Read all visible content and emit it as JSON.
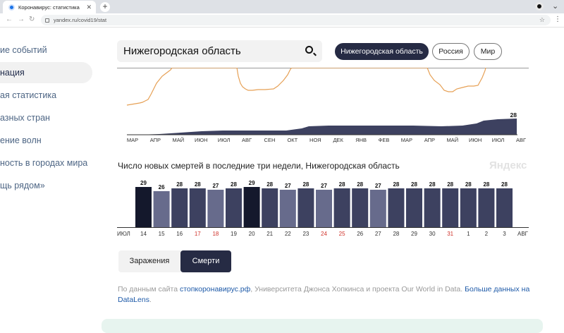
{
  "browser": {
    "tab_title": "Коронавирус: статистика",
    "url": "yandex.ru/covid19/stat"
  },
  "sidebar": {
    "items": [
      {
        "label": "ие событий",
        "active": false
      },
      {
        "label": "нация",
        "active": true
      },
      {
        "label": "ая статистика",
        "active": false
      },
      {
        "label": "азных стран",
        "active": false
      },
      {
        "label": "ение волн",
        "active": false
      },
      {
        "label": "ность в городах мира",
        "active": false
      },
      {
        "label": "щь рядом»",
        "active": false
      }
    ]
  },
  "search": {
    "value": "Нижегородская область"
  },
  "region_buttons": [
    {
      "label": "Нижегородская область",
      "active": true
    },
    {
      "label": "Россия",
      "active": false
    },
    {
      "label": "Мир",
      "active": false
    }
  ],
  "timeline": {
    "months": [
      "МАР",
      "АПР",
      "МАЙ",
      "ИЮН",
      "ИЮЛ",
      "АВГ",
      "СЕН",
      "ОКТ",
      "НОЯ",
      "ДЕК",
      "ЯНВ",
      "ФЕВ",
      "МАР",
      "АПР",
      "МАЙ",
      "ИЮН",
      "ИЮЛ",
      "АВГ"
    ],
    "last_value_label": "28"
  },
  "chart_data": {
    "type": "bar",
    "title": "Число новых смертей в последние три недели, Нижегородская область",
    "categories": [
      "14",
      "15",
      "16",
      "17",
      "18",
      "19",
      "20",
      "21",
      "22",
      "23",
      "24",
      "25",
      "26",
      "27",
      "28",
      "29",
      "30",
      "31",
      "1",
      "2",
      "3"
    ],
    "values": [
      29,
      26,
      28,
      28,
      27,
      28,
      29,
      28,
      27,
      28,
      27,
      28,
      28,
      27,
      28,
      28,
      28,
      28,
      28,
      28,
      28
    ],
    "weekend_categories": [
      "17",
      "18",
      "24",
      "25",
      "31"
    ],
    "x_start_label": "ИЮЛ",
    "x_end_label": "АВГ",
    "ylim": [
      0,
      29
    ],
    "colors": {
      "high": "#14182c",
      "mid": "#3d4160",
      "low": "#676b8c",
      "weekend_text": "#d0342c"
    }
  },
  "watermark": "Яндекс",
  "toggle": {
    "infections": "Заражения",
    "deaths": "Смерти"
  },
  "source": {
    "prefix": "По данным сайта ",
    "link1": "стопкоронавирус.рф",
    "middle": ", Университета Джонса Хопкинса и проекта Our World in Data. ",
    "link2": "Больше данных на DataLens",
    "suffix": "."
  }
}
